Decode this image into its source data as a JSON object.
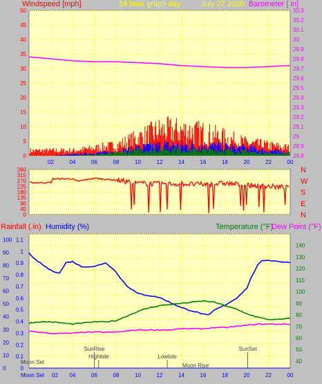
{
  "chart_data": [
    {
      "type": "line",
      "title": "24 hour graph day",
      "date": "July 27 2020",
      "ylabel_left": "Windspeed [mph]",
      "ylabel_right": "Barometer [ in]",
      "left_ticks": [
        "0",
        "5",
        "10",
        "15",
        "20",
        "25",
        "30",
        "35",
        "40",
        "45",
        "50"
      ],
      "left_ylim": [
        0,
        50
      ],
      "right_ticks": [
        "28.8",
        "28.9",
        "29",
        "29.1",
        "29.2",
        "29.3",
        "29.4",
        "29.5",
        "29.6",
        "29.7",
        "29.8",
        "29.9",
        "30",
        "30.1",
        "30.2",
        "30.3"
      ],
      "right_ylim": [
        28.8,
        30.3
      ],
      "x_ticks": [
        "02",
        "04",
        "06",
        "08",
        "10",
        "12",
        "14",
        "16",
        "18",
        "20",
        "22",
        "00"
      ],
      "x_range_hours": [
        0,
        24
      ],
      "grid": true,
      "series": [
        {
          "name": "Barometer",
          "axis": "right",
          "color": "#ff00ff",
          "x": [
            0,
            2,
            4,
            6,
            8,
            10,
            12,
            14,
            16,
            18,
            20,
            22,
            24
          ],
          "values": [
            29.82,
            29.8,
            29.78,
            29.77,
            29.77,
            29.76,
            29.75,
            29.73,
            29.72,
            29.71,
            29.71,
            29.72,
            29.73
          ]
        },
        {
          "name": "Wind gust",
          "axis": "left",
          "color": "#ff0000",
          "x": [
            0,
            2,
            4,
            6,
            8,
            10,
            12,
            14,
            16,
            18,
            20,
            22,
            24
          ],
          "values": [
            2,
            2,
            2,
            3,
            4,
            7,
            10,
            10,
            9,
            7,
            5,
            4,
            3
          ]
        },
        {
          "name": "Wind speed",
          "axis": "left",
          "color": "#0000ff",
          "x": [
            0,
            2,
            4,
            6,
            8,
            10,
            12,
            14,
            16,
            18,
            20,
            22,
            24
          ],
          "values": [
            0,
            0,
            0.5,
            1,
            1.5,
            3,
            4,
            4,
            4,
            3.5,
            3,
            2,
            1.5
          ]
        },
        {
          "name": "Wind average",
          "axis": "left",
          "color": "#008000",
          "x": [
            0,
            2,
            4,
            6,
            8,
            10,
            12,
            14,
            16,
            18,
            20,
            22,
            24
          ],
          "values": [
            0,
            0,
            0,
            0.5,
            1,
            2,
            2.5,
            2.5,
            2,
            2,
            1.5,
            1,
            1
          ]
        }
      ]
    },
    {
      "type": "scatter",
      "right_labels": [
        "N",
        "W",
        "S",
        "E",
        "N"
      ],
      "left_ticks": [
        "360",
        "315",
        "270",
        "225",
        "180",
        "135",
        "90",
        "45",
        "0"
      ],
      "ylim": [
        0,
        360
      ],
      "x_range_hours": [
        0,
        24
      ],
      "series": [
        {
          "name": "Wind direction",
          "color": "#ff0000",
          "x": [
            0,
            2,
            2.2,
            4,
            4.4,
            6,
            8,
            10,
            12,
            14,
            16,
            18,
            20,
            22,
            24
          ],
          "values": [
            255,
            255,
            285,
            285,
            265,
            290,
            275,
            250,
            245,
            245,
            240,
            250,
            235,
            225,
            215
          ]
        }
      ]
    },
    {
      "type": "line",
      "ylabel_left_1": "Rainfall (.in)",
      "ylabel_left_2": "Humidity (%)",
      "ylabel_right_1": "Temperature (°F)",
      "ylabel_right_2": "Dew Point (°F)",
      "rain_ticks": [
        "0",
        "0.1",
        "0.2",
        "0.3",
        "0.4",
        "0.5",
        "0.6",
        "0.7",
        "0.8",
        "0.9",
        "1",
        "1.1"
      ],
      "humidity_ticks": [
        "0",
        "10",
        "20",
        "30",
        "40",
        "50",
        "60",
        "70",
        "80",
        "90",
        "100"
      ],
      "temp_ticks": [
        "40",
        "50",
        "60",
        "70",
        "80",
        "90",
        "100",
        "110",
        "120",
        "130",
        "140"
      ],
      "rain_ylim": [
        0,
        1.15
      ],
      "humidity_ylim": [
        0,
        104.5
      ],
      "temp_ylim": [
        34,
        150
      ],
      "x_ticks": [
        "02",
        "04",
        "06",
        "08",
        "10",
        "12",
        "14",
        "16",
        "18",
        "20",
        "22",
        "00"
      ],
      "x_range_hours": [
        0,
        24
      ],
      "events": [
        {
          "label": "Moon Set",
          "hour": 0.2,
          "row": 4
        },
        {
          "label": "Moon Set",
          "hour": 0,
          "row": 5
        },
        {
          "label": "SunRise",
          "hour": 6,
          "row": 1
        },
        {
          "label": "Hightide",
          "hour": 6.4,
          "row": 2
        },
        {
          "label": "Lowtide",
          "hour": 12.7,
          "row": 2
        },
        {
          "label": "Moon Rise",
          "hour": 15.3,
          "row": 3
        },
        {
          "label": "SunSet",
          "hour": 20.1,
          "row": 1
        }
      ],
      "series": [
        {
          "name": "Humidity",
          "axis": "humidity",
          "color": "#0000ff",
          "x": [
            0,
            0.3,
            1,
            2,
            2.8,
            3.4,
            4,
            4.8,
            6,
            7,
            7.8,
            8.3,
            9,
            10,
            12,
            14,
            16,
            16.5,
            17,
            18,
            19,
            20,
            20.5,
            21,
            21.5,
            22,
            23,
            24
          ],
          "values": [
            90,
            86,
            82,
            76,
            74,
            82,
            83,
            79,
            79,
            82,
            77,
            71,
            64,
            58,
            55,
            47,
            42,
            41,
            45,
            49,
            54,
            62,
            72,
            80,
            84,
            84,
            83,
            82
          ]
        },
        {
          "name": "Temperature",
          "axis": "temp",
          "color": "#008000",
          "x": [
            0,
            1,
            2,
            3,
            4,
            5,
            6,
            7,
            8,
            9,
            10,
            11,
            12,
            13,
            14,
            15,
            16,
            17,
            18,
            19,
            20,
            21,
            22,
            23,
            24
          ],
          "values": [
            73,
            74,
            74,
            73,
            72,
            73,
            74,
            74,
            75,
            79,
            83,
            86,
            88,
            89,
            90,
            91,
            92,
            91,
            88,
            85,
            81,
            78,
            76,
            76,
            77
          ]
        },
        {
          "name": "Dew Point",
          "axis": "temp",
          "color": "#ff00ff",
          "x": [
            0,
            1,
            2,
            3,
            4,
            5,
            6,
            7,
            8,
            9,
            10,
            11,
            12,
            13,
            14,
            15,
            16,
            17,
            18,
            19,
            20,
            21,
            22,
            23,
            24
          ],
          "values": [
            66,
            65,
            64,
            64,
            64,
            65,
            65,
            65,
            65,
            66,
            67,
            67,
            67,
            67,
            68,
            68,
            68,
            69,
            69,
            70,
            71,
            72,
            72,
            72,
            72
          ]
        },
        {
          "name": "Rainfall",
          "axis": "rain",
          "color": "#0000ff",
          "x": [
            0,
            24
          ],
          "values": [
            0,
            0
          ]
        }
      ]
    }
  ]
}
